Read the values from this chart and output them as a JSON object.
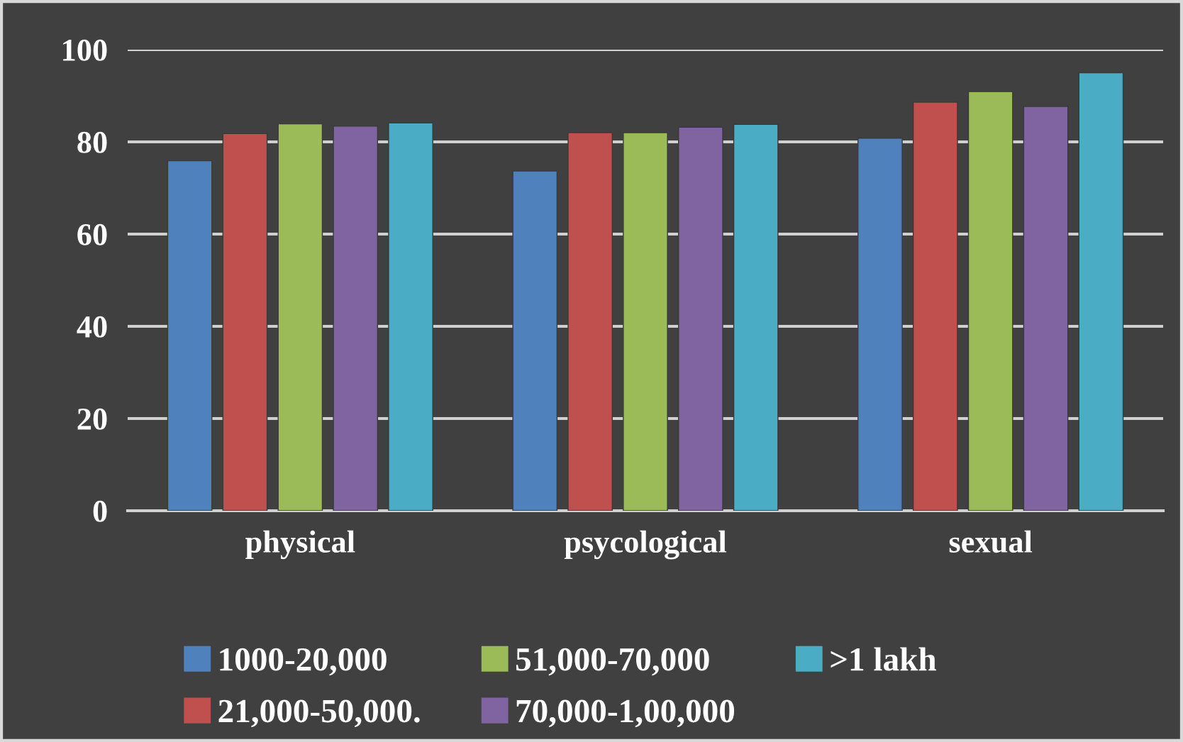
{
  "chart_data": {
    "type": "bar",
    "categories": [
      "physical",
      "psycological",
      "sexual"
    ],
    "series": [
      {
        "name": "1000-20,000",
        "color": "#4f81bd",
        "values": [
          75.9,
          73.7,
          80.8
        ]
      },
      {
        "name": "21,000-50,000.",
        "color": "#c0504d",
        "values": [
          81.8,
          82.0,
          88.6
        ]
      },
      {
        "name": "51,000-70,000",
        "color": "#9bbb59",
        "values": [
          83.9,
          82.0,
          90.9
        ]
      },
      {
        "name": "70,000-1,00,000",
        "color": "#8064a2",
        "values": [
          83.4,
          83.2,
          87.7
        ]
      },
      {
        "name": ">1 lakh",
        "color": "#4bacc6",
        "values": [
          84.1,
          83.8,
          95.0
        ]
      }
    ],
    "ylim": [
      0,
      100
    ],
    "yticks": [
      0,
      20,
      40,
      60,
      80,
      100
    ],
    "grid": "y",
    "legend": "bottom"
  }
}
